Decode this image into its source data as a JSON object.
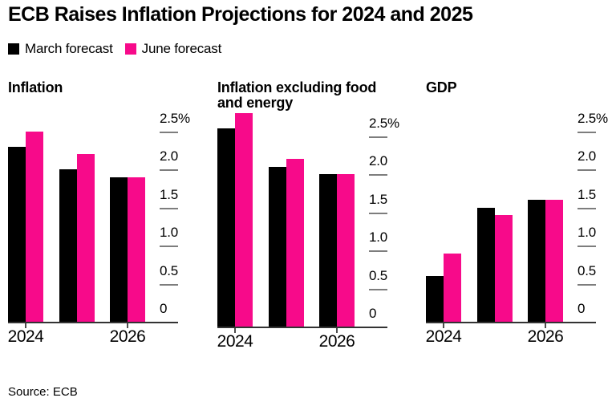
{
  "title": "ECB Raises Inflation Projections for 2024 and 2025",
  "legend": {
    "position": "top-left",
    "items": [
      {
        "label": "March forecast",
        "color": "#000000"
      },
      {
        "label": "June forecast",
        "color": "#f70a8a"
      }
    ]
  },
  "source": "Source: ECB",
  "colors": {
    "series_colors": [
      "#000000",
      "#f70a8a"
    ],
    "axis_line": "#333333",
    "tick_dash": "#7d7d7d",
    "text": "#000000",
    "background": "#ffffff"
  },
  "chart_data": [
    {
      "type": "bar",
      "title": "Inflation",
      "unit": "%",
      "ylim": [
        0,
        2.5
      ],
      "grid": "right-side tick dashes",
      "categories": [
        "2024",
        "2025",
        "2026"
      ],
      "series": [
        {
          "name": "March forecast",
          "values": [
            2.3,
            2.0,
            1.9
          ]
        },
        {
          "name": "June forecast",
          "values": [
            2.5,
            2.2,
            1.9
          ]
        }
      ],
      "y_ticks": [
        {
          "value": 2.5,
          "label": "2.5%"
        },
        {
          "value": 2.0,
          "label": "2.0"
        },
        {
          "value": 1.5,
          "label": "1.5"
        },
        {
          "value": 1.0,
          "label": "1.0"
        },
        {
          "value": 0.5,
          "label": "0.5"
        },
        {
          "value": 0,
          "label": "0"
        }
      ],
      "x_tick_labels": [
        {
          "category_index": 0,
          "label": "2024"
        },
        {
          "category_index": 2,
          "label": "2026"
        }
      ]
    },
    {
      "type": "bar",
      "title": "Inflation excluding food and energy",
      "unit": "%",
      "ylim": [
        0,
        2.5
      ],
      "grid": "right-side tick dashes",
      "categories": [
        "2024",
        "2025",
        "2026"
      ],
      "series": [
        {
          "name": "March forecast",
          "values": [
            2.6,
            2.1,
            2.0
          ]
        },
        {
          "name": "June forecast",
          "values": [
            2.8,
            2.2,
            2.0
          ]
        }
      ],
      "y_ticks": [
        {
          "value": 2.5,
          "label": "2.5%"
        },
        {
          "value": 2.0,
          "label": "2.0"
        },
        {
          "value": 1.5,
          "label": "1.5"
        },
        {
          "value": 1.0,
          "label": "1.0"
        },
        {
          "value": 0.5,
          "label": "0.5"
        },
        {
          "value": 0,
          "label": "0"
        }
      ],
      "x_tick_labels": [
        {
          "category_index": 0,
          "label": "2024"
        },
        {
          "category_index": 2,
          "label": "2026"
        }
      ]
    },
    {
      "type": "bar",
      "title": "GDP",
      "unit": "%",
      "ylim": [
        0,
        2.5
      ],
      "grid": "right-side tick dashes",
      "categories": [
        "2024",
        "2025",
        "2026"
      ],
      "series": [
        {
          "name": "March forecast",
          "values": [
            0.6,
            1.5,
            1.6
          ]
        },
        {
          "name": "June forecast",
          "values": [
            0.9,
            1.4,
            1.6
          ]
        }
      ],
      "y_ticks": [
        {
          "value": 2.5,
          "label": "2.5%"
        },
        {
          "value": 2.0,
          "label": "2.0"
        },
        {
          "value": 1.5,
          "label": "1.5"
        },
        {
          "value": 1.0,
          "label": "1.0"
        },
        {
          "value": 0.5,
          "label": "0.5"
        },
        {
          "value": 0,
          "label": "0"
        }
      ],
      "x_tick_labels": [
        {
          "category_index": 0,
          "label": "2024"
        },
        {
          "category_index": 2,
          "label": "2026"
        }
      ]
    }
  ]
}
